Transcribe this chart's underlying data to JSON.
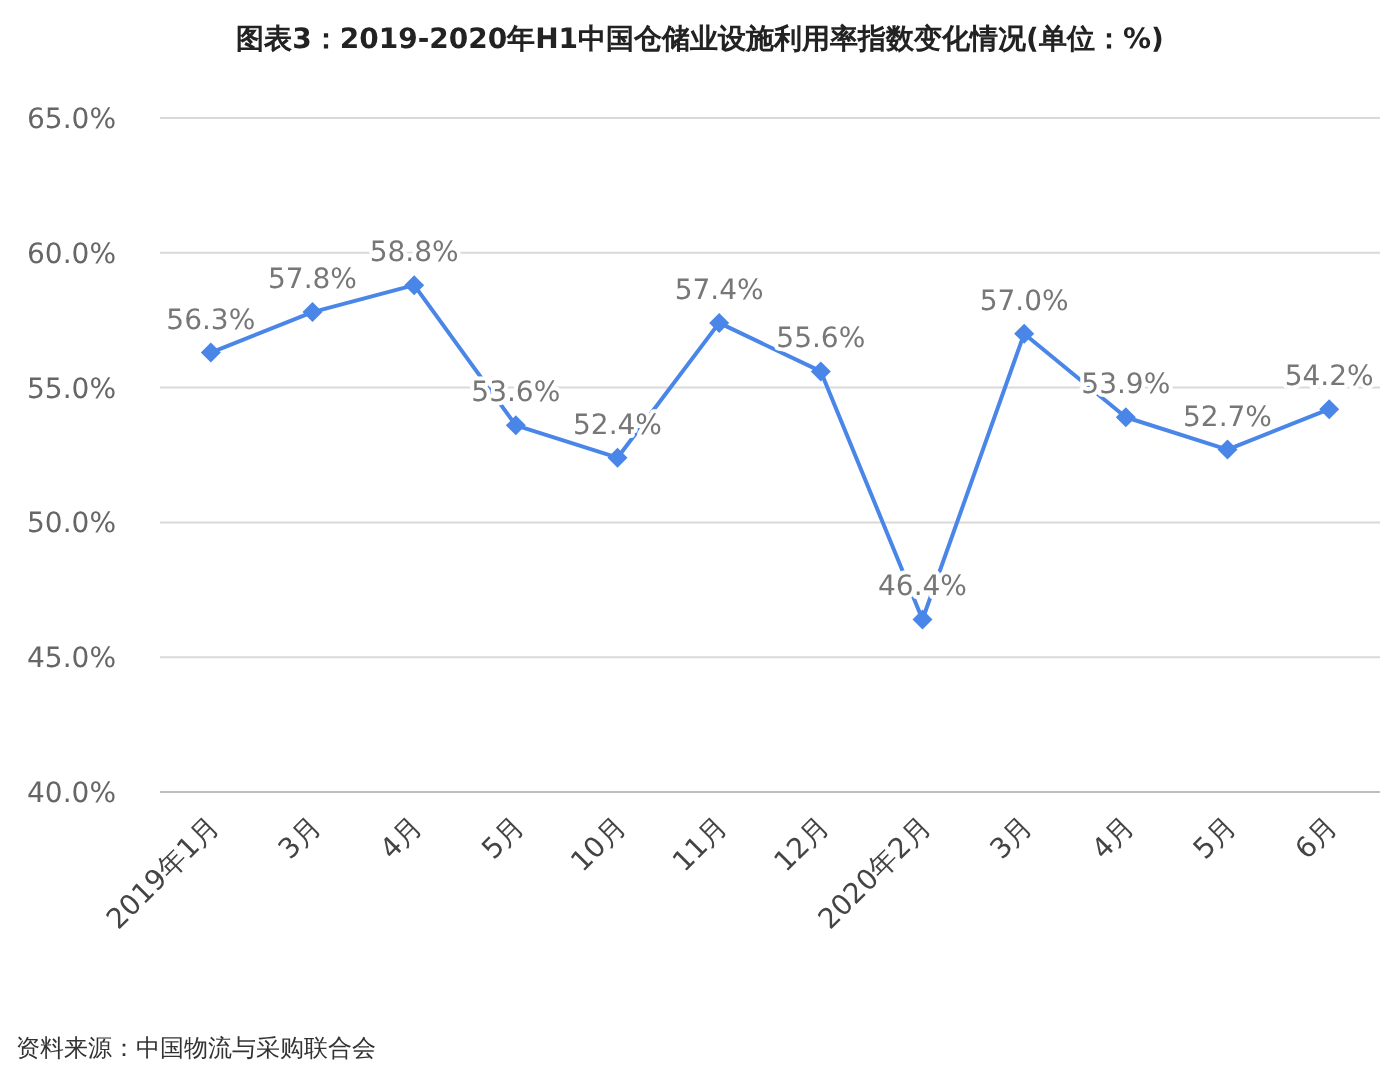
{
  "chart_data": {
    "type": "line",
    "title": "图表3：2019-2020年H1中国仓储业设施利用率指数变化情况(单位：%)",
    "categories": [
      "2019年1月",
      "3月",
      "4月",
      "5月",
      "10月",
      "11月",
      "12月",
      "2020年2月",
      "3月",
      "4月",
      "5月",
      "6月"
    ],
    "series": [
      {
        "color": "#4a86e8",
        "values": [
          56.3,
          57.8,
          58.8,
          53.6,
          52.4,
          57.4,
          55.6,
          46.4,
          57.0,
          53.9,
          52.7,
          54.2
        ],
        "value_labels": [
          "56.3%",
          "57.8%",
          "58.8%",
          "53.6%",
          "52.4%",
          "57.4%",
          "55.6%",
          "46.4%",
          "57.0%",
          "53.9%",
          "52.7%",
          "54.2%"
        ]
      }
    ],
    "ylim": [
      40,
      65
    ],
    "yticks": [
      {
        "value": 40,
        "label": "40.0%"
      },
      {
        "value": 45,
        "label": "45.0%"
      },
      {
        "value": 50,
        "label": "50.0%"
      },
      {
        "value": 55,
        "label": "55.0%"
      },
      {
        "value": 60,
        "label": "60.0%"
      },
      {
        "value": 65,
        "label": "65.0%"
      }
    ],
    "grid": "y",
    "marker": "diamond",
    "line_style": "solid",
    "annotations": [
      "资料来源：中国物流与采购联合会"
    ]
  }
}
